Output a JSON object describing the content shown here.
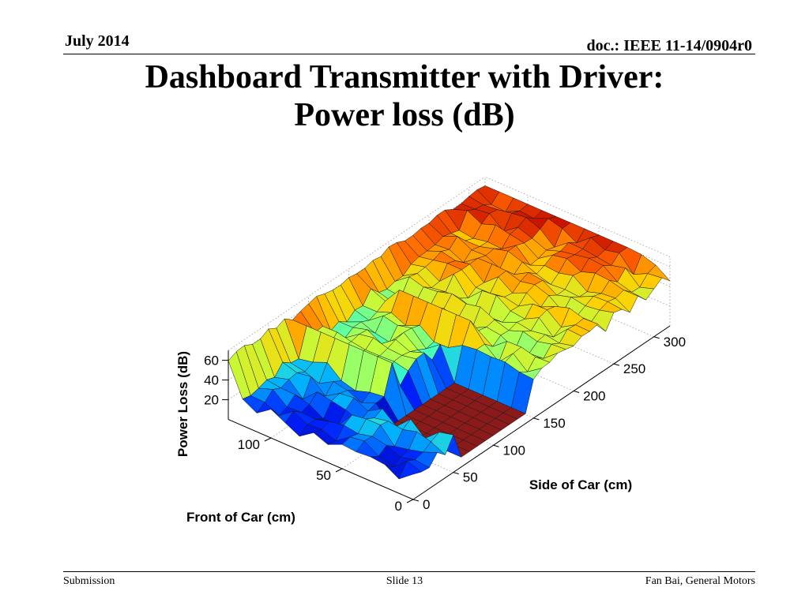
{
  "header": {
    "date": "July 2014",
    "doc_id": "doc.: IEEE 11-14/0904r0"
  },
  "title": {
    "line1": "Dashboard Transmitter with Driver:",
    "line2": "Power loss (dB)"
  },
  "footer": {
    "left": "Submission",
    "center": "Slide 13",
    "right": "Fan Bai, General Motors"
  },
  "chart_data": {
    "type": "surface",
    "title": "",
    "xlabel": "Side of Car (cm)",
    "ylabel": "Front of Car (cm)",
    "zlabel": "Power Loss (dB)",
    "x_ticks": [
      0,
      50,
      100,
      150,
      200,
      250,
      300
    ],
    "y_ticks": [
      0,
      50,
      100
    ],
    "z_ticks": [
      20,
      40,
      60
    ],
    "xlim": [
      0,
      320
    ],
    "ylim": [
      0,
      130
    ],
    "zlim": [
      0,
      70
    ],
    "grid": true,
    "colormap": "jet",
    "colormap_colors": [
      "#00008f",
      "#0020ff",
      "#00b0ff",
      "#40ffbf",
      "#bfff40",
      "#ffd000",
      "#ff6000",
      "#bf0000",
      "#800000"
    ],
    "wall_color": "#8b1a1a",
    "description_values": {
      "floor_region_db": 10,
      "wall_peak_db": 65,
      "typical_range_db": [
        25,
        55
      ]
    }
  }
}
